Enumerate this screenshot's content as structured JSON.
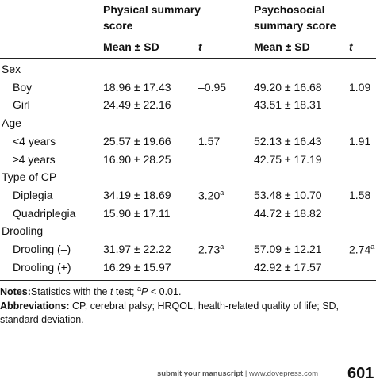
{
  "table": {
    "header": {
      "groups": [
        "Physical summary score",
        "Psychosocial summary score"
      ],
      "columns": [
        "Mean ± SD",
        "t",
        "Mean ± SD",
        "t"
      ]
    },
    "sections": [
      {
        "label": "Sex",
        "rows": [
          {
            "label": "Boy",
            "cells": [
              {
                "text": "18.96 ± 17.43"
              },
              {
                "text": "–0.95"
              },
              {
                "text": "49.20 ± 16.68"
              },
              {
                "text": "1.09"
              }
            ]
          },
          {
            "label": "Girl",
            "cells": [
              {
                "text": "24.49 ± 22.16"
              },
              null,
              {
                "text": "43.51 ± 18.31"
              },
              null
            ]
          }
        ]
      },
      {
        "label": "Age",
        "rows": [
          {
            "label": "<4 years",
            "cells": [
              {
                "text": "25.57 ± 19.66"
              },
              {
                "text": "1.57"
              },
              {
                "text": "52.13 ± 16.43"
              },
              {
                "text": "1.91"
              }
            ]
          },
          {
            "label": "≥4 years",
            "cells": [
              {
                "text": "16.90 ± 28.25"
              },
              null,
              {
                "text": "42.75 ± 17.19"
              },
              null
            ]
          }
        ]
      },
      {
        "label": "Type of CP",
        "rows": [
          {
            "label": "Diplegia",
            "cells": [
              {
                "text": "34.19 ± 18.69"
              },
              {
                "text": "3.20",
                "sup": "a"
              },
              {
                "text": "53.48 ± 10.70"
              },
              {
                "text": "1.58"
              }
            ]
          },
          {
            "label": "Quadriplegia",
            "cells": [
              {
                "text": "15.90 ± 17.11"
              },
              null,
              {
                "text": "44.72 ± 18.82"
              },
              null
            ]
          }
        ]
      },
      {
        "label": "Drooling",
        "rows": [
          {
            "label": "Drooling (–)",
            "cells": [
              {
                "text": "31.97 ± 22.22"
              },
              {
                "text": "2.73",
                "sup": "a"
              },
              {
                "text": "57.09 ± 12.21"
              },
              {
                "text": "2.74",
                "sup": "a"
              }
            ]
          },
          {
            "label": "Drooling (+)",
            "cells": [
              {
                "text": "16.29 ± 15.97"
              },
              null,
              {
                "text": "42.92 ± 17.57"
              },
              null
            ]
          }
        ]
      }
    ]
  },
  "notes": {
    "label": "Notes:",
    "parts": [
      "Statistics with the ",
      "t",
      " test; ",
      "a",
      "P",
      " < 0.01."
    ]
  },
  "abbreviations": {
    "label": "Abbreviations:",
    "text": "CP, cerebral palsy; HRQOL, health-related quality of life; SD, standard deviation."
  },
  "footer": {
    "link": "submit your manuscript",
    "separator": "|",
    "site": "www.dovepress.com",
    "page": "601"
  }
}
